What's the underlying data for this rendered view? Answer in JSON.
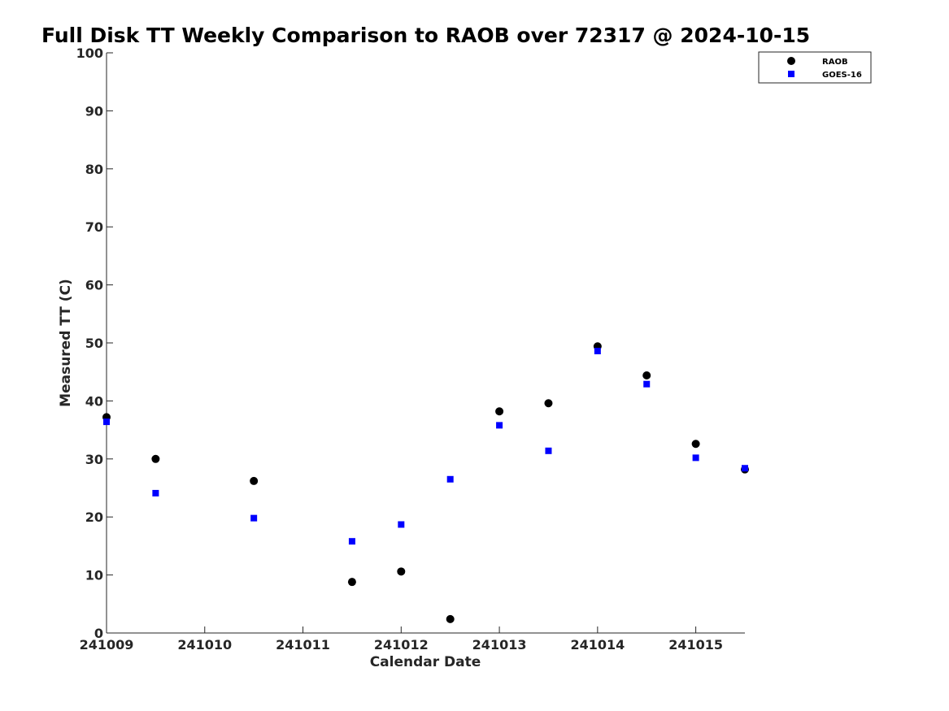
{
  "chart_data": {
    "type": "scatter",
    "title": "Full Disk TT Weekly Comparison to RAOB over 72317 @ 2024-10-15",
    "xlabel": "Calendar Date",
    "ylabel": "Measured TT (C)",
    "x_ticks": [
      "241009",
      "241010",
      "241011",
      "241012",
      "241013",
      "241014",
      "241015"
    ],
    "y_ticks": [
      "0",
      "10",
      "20",
      "30",
      "40",
      "50",
      "60",
      "70",
      "80",
      "90",
      "100"
    ],
    "xlim": [
      "2024-10-09 00:00",
      "2024-10-15 12:00"
    ],
    "ylim": [
      0,
      100
    ],
    "grid": false,
    "legend_position": "top-right",
    "series": [
      {
        "name": "RAOB",
        "marker": "circle",
        "color": "#000000",
        "points": [
          {
            "x": "2024-10-09 00:00",
            "y": 37.2
          },
          {
            "x": "2024-10-09 12:00",
            "y": 30.0
          },
          {
            "x": "2024-10-10 12:00",
            "y": 26.2
          },
          {
            "x": "2024-10-11 12:00",
            "y": 8.8
          },
          {
            "x": "2024-10-12 00:00",
            "y": 10.6
          },
          {
            "x": "2024-10-12 12:00",
            "y": 2.4
          },
          {
            "x": "2024-10-13 00:00",
            "y": 38.2
          },
          {
            "x": "2024-10-13 12:00",
            "y": 39.6
          },
          {
            "x": "2024-10-14 00:00",
            "y": 49.4
          },
          {
            "x": "2024-10-14 12:00",
            "y": 44.4
          },
          {
            "x": "2024-10-15 00:00",
            "y": 32.6
          },
          {
            "x": "2024-10-15 12:00",
            "y": 28.2
          }
        ]
      },
      {
        "name": "GOES-16",
        "marker": "square",
        "color": "#0000ff",
        "points": [
          {
            "x": "2024-10-09 00:00",
            "y": 36.4
          },
          {
            "x": "2024-10-09 12:00",
            "y": 24.1
          },
          {
            "x": "2024-10-10 12:00",
            "y": 19.8
          },
          {
            "x": "2024-10-11 12:00",
            "y": 15.8
          },
          {
            "x": "2024-10-12 00:00",
            "y": 18.7
          },
          {
            "x": "2024-10-12 12:00",
            "y": 26.5
          },
          {
            "x": "2024-10-13 00:00",
            "y": 35.8
          },
          {
            "x": "2024-10-13 12:00",
            "y": 31.4
          },
          {
            "x": "2024-10-14 00:00",
            "y": 48.6
          },
          {
            "x": "2024-10-14 12:00",
            "y": 42.9
          },
          {
            "x": "2024-10-15 00:00",
            "y": 30.2
          },
          {
            "x": "2024-10-15 12:00",
            "y": 28.4
          }
        ]
      }
    ]
  }
}
